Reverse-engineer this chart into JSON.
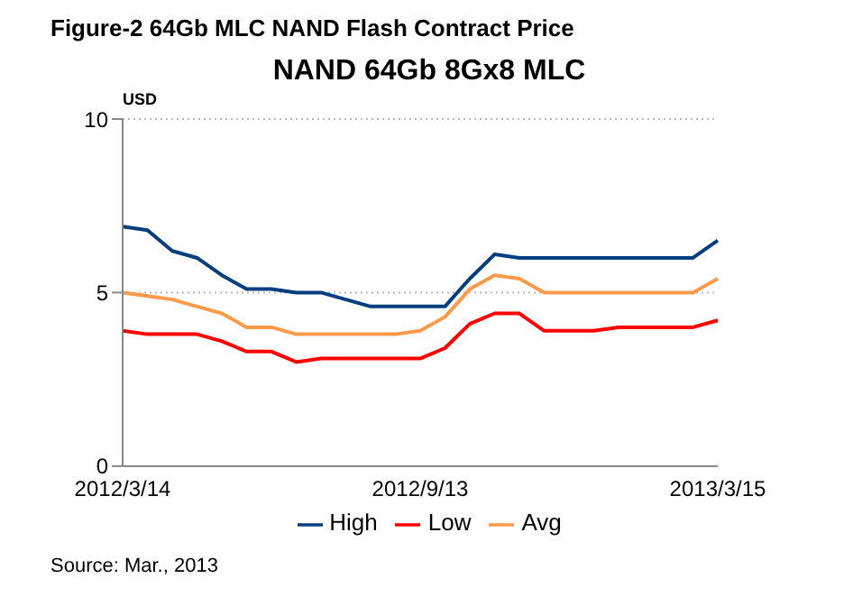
{
  "chart_data": {
    "type": "line",
    "title": "NAND 64Gb 8Gx8 MLC",
    "subtitle": "Figure-2 64Gb MLC NAND Flash Contract Price",
    "ylabel": "USD",
    "categories": [
      "2012/3/14",
      null,
      null,
      null,
      null,
      null,
      null,
      null,
      null,
      null,
      null,
      null,
      "2012/9/13",
      null,
      null,
      null,
      null,
      null,
      null,
      null,
      null,
      null,
      null,
      null,
      "2013/3/15"
    ],
    "series": [
      {
        "name": "High",
        "color": "#003f7f",
        "values": [
          6.9,
          6.8,
          6.2,
          6.0,
          5.5,
          5.1,
          5.1,
          5.0,
          5.0,
          4.8,
          4.6,
          4.6,
          4.6,
          4.6,
          5.4,
          6.1,
          6.0,
          6.0,
          6.0,
          6.0,
          6.0,
          6.0,
          6.0,
          6.0,
          6.5
        ]
      },
      {
        "name": "Low",
        "color": "#ff0000",
        "values": [
          3.9,
          3.8,
          3.8,
          3.8,
          3.6,
          3.3,
          3.3,
          3.0,
          3.1,
          3.1,
          3.1,
          3.1,
          3.1,
          3.4,
          4.1,
          4.4,
          4.4,
          3.9,
          3.9,
          3.9,
          4.0,
          4.0,
          4.0,
          4.0,
          4.2
        ]
      },
      {
        "name": "Avg",
        "color": "#ff9a4a",
        "values": [
          5.0,
          4.9,
          4.8,
          4.6,
          4.4,
          4.0,
          4.0,
          3.8,
          3.8,
          3.8,
          3.8,
          3.8,
          3.9,
          4.3,
          5.1,
          5.5,
          5.4,
          5.0,
          5.0,
          5.0,
          5.0,
          5.0,
          5.0,
          5.0,
          5.4
        ]
      }
    ],
    "ylim": [
      0,
      10
    ],
    "yticks": [
      0,
      5,
      10
    ],
    "grid": "y",
    "legend": "bottom",
    "marker": "none",
    "line_style": "solid",
    "annotations": [
      "Source: Mar., 2013"
    ]
  }
}
